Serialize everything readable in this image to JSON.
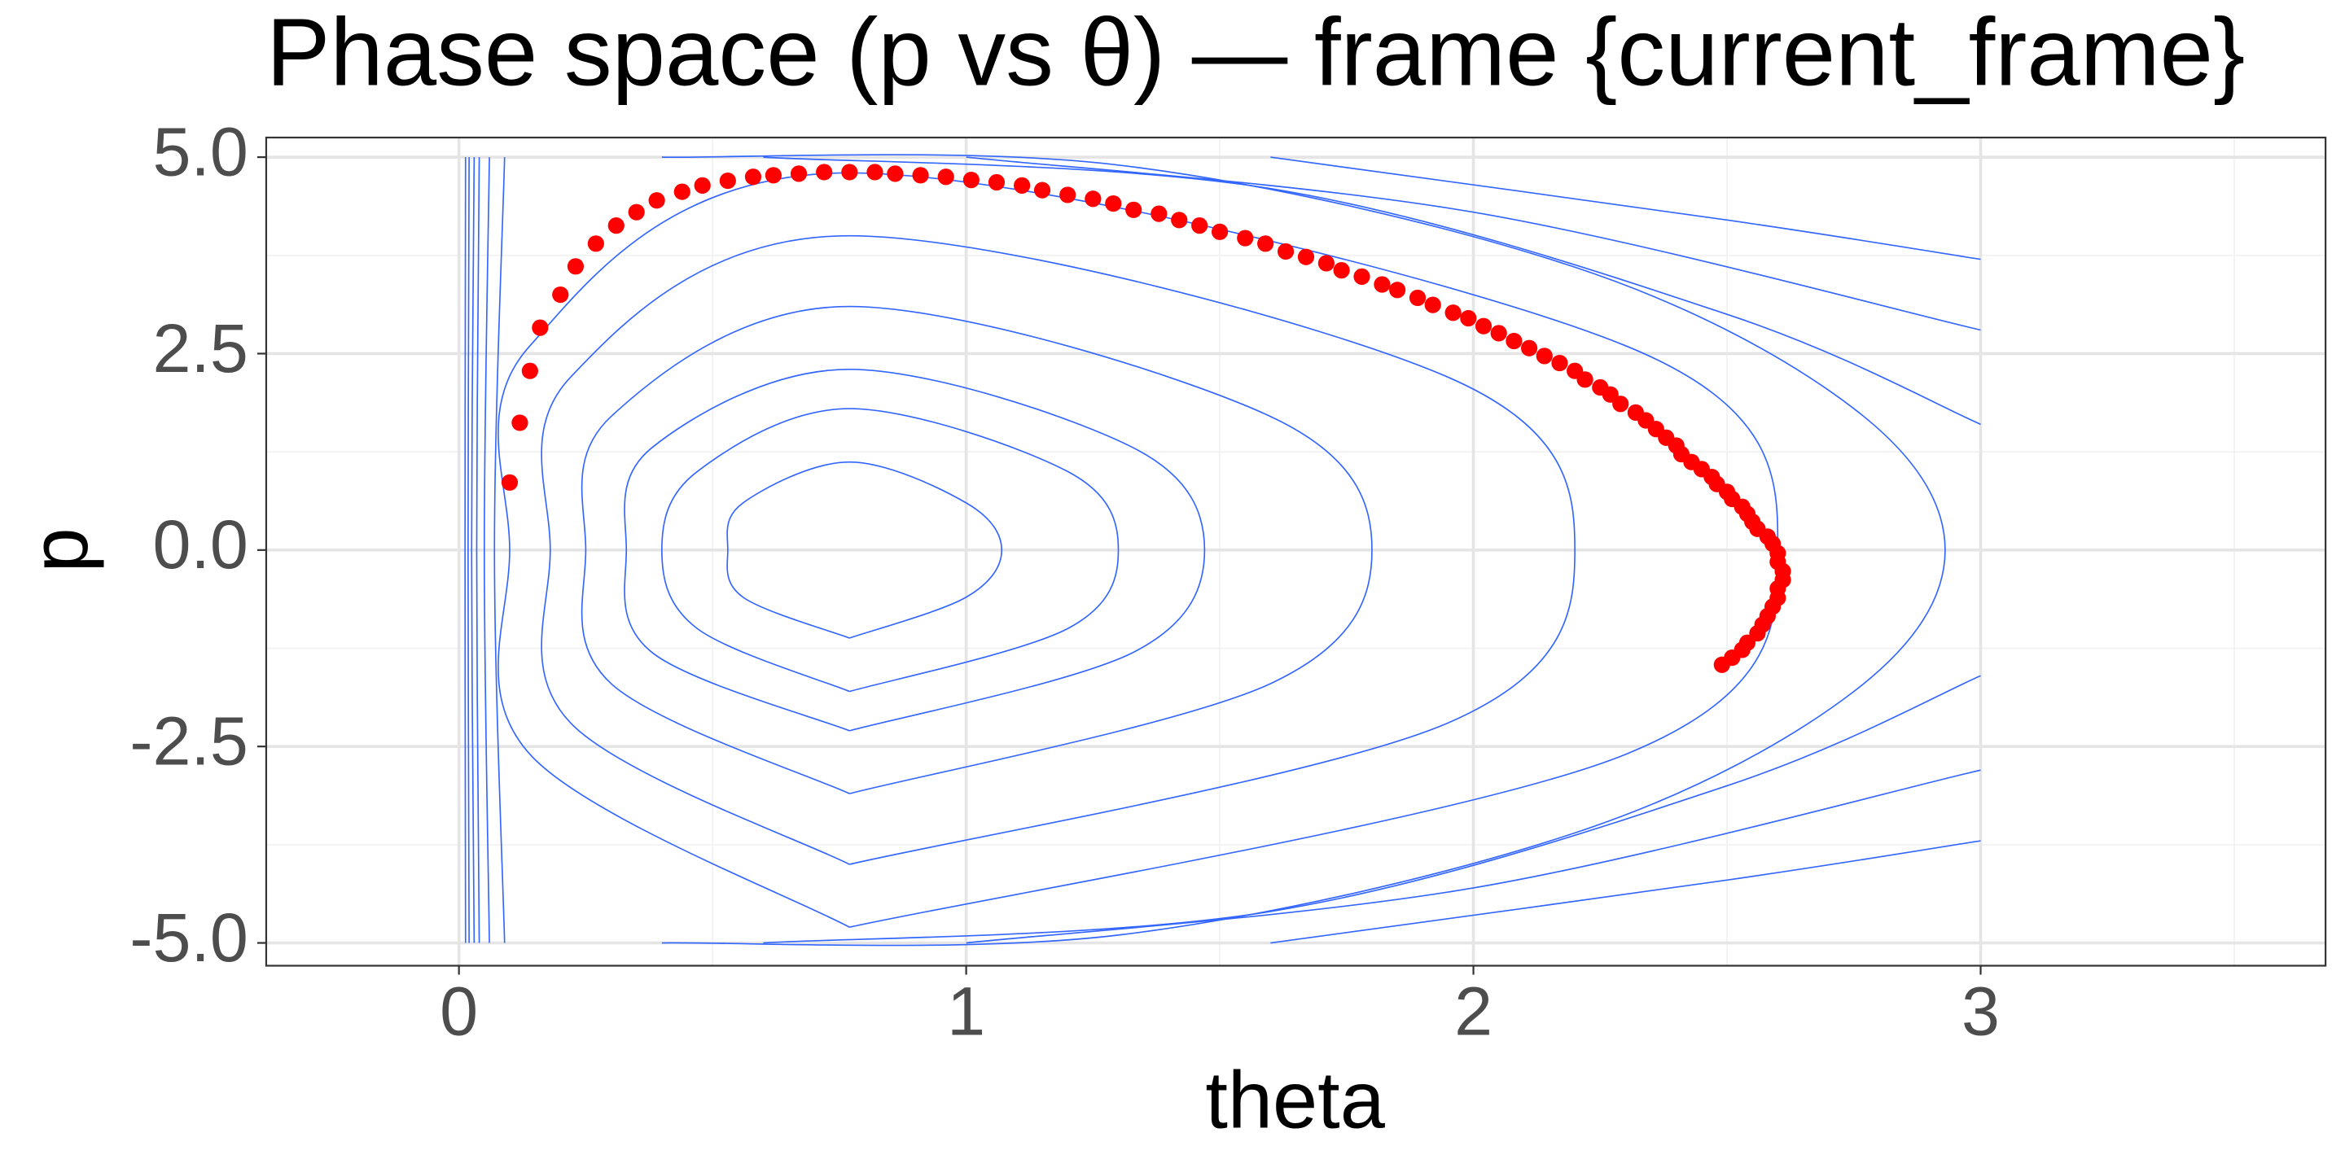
{
  "chart_data": {
    "type": "scatter",
    "title": "Phase space (p vs θ) — frame {current_frame}",
    "x_label": "theta",
    "y_label": "p",
    "xlim": [
      -0.38,
      3.68
    ],
    "ylim": [
      -5.29,
      5.25
    ],
    "xticks": [
      0,
      1,
      2,
      3
    ],
    "yticks": [
      {
        "value": 5,
        "label": "5.0"
      },
      {
        "value": 2.5,
        "label": "2.5"
      },
      {
        "value": 0,
        "label": "0.0"
      },
      {
        "value": -2.5,
        "label": "-2.5"
      },
      {
        "value": -5,
        "label": "-5.0"
      }
    ],
    "x_minor_grid": [
      0.5,
      1.5,
      2.5,
      3.5
    ],
    "y_minor_grid": [
      -3.75,
      -1.25,
      1.25,
      3.75
    ],
    "grid": true,
    "point_color": "#ff0000",
    "contour_color": "#3366ff",
    "points": {
      "x": [
        0.1,
        0.12,
        0.14,
        0.16,
        0.2,
        0.23,
        0.27,
        0.31,
        0.35,
        0.39,
        0.44,
        0.48,
        0.53,
        0.58,
        0.62,
        0.67,
        0.72,
        0.77,
        0.82,
        0.86,
        0.91,
        0.96,
        1.01,
        1.06,
        1.11,
        1.15,
        1.2,
        1.25,
        1.29,
        1.33,
        1.38,
        1.42,
        1.46,
        1.5,
        1.55,
        1.59,
        1.63,
        1.67,
        1.71,
        1.74,
        1.78,
        1.82,
        1.85,
        1.89,
        1.92,
        1.96,
        1.99,
        2.02,
        2.05,
        2.08,
        2.11,
        2.14,
        2.17,
        2.2,
        2.22,
        2.25,
        2.27,
        2.29,
        2.32,
        2.34,
        2.36,
        2.38,
        2.4,
        2.41,
        2.43,
        2.45,
        2.47,
        2.48,
        2.5,
        2.51,
        2.53,
        2.54,
        2.55,
        2.56,
        2.58,
        2.59,
        2.6,
        2.6,
        2.61,
        2.61,
        2.6,
        2.6,
        2.59,
        2.58,
        2.57,
        2.56,
        2.54,
        2.53,
        2.51,
        2.49
      ],
      "y": [
        0.86,
        1.62,
        2.28,
        2.83,
        3.25,
        3.61,
        3.9,
        4.13,
        4.3,
        4.45,
        4.56,
        4.64,
        4.7,
        4.75,
        4.77,
        4.79,
        4.81,
        4.81,
        4.81,
        4.79,
        4.77,
        4.75,
        4.71,
        4.68,
        4.64,
        4.58,
        4.52,
        4.47,
        4.41,
        4.33,
        4.28,
        4.2,
        4.13,
        4.05,
        3.97,
        3.9,
        3.8,
        3.73,
        3.65,
        3.56,
        3.48,
        3.38,
        3.31,
        3.21,
        3.12,
        3.02,
        2.95,
        2.85,
        2.76,
        2.66,
        2.57,
        2.47,
        2.38,
        2.28,
        2.17,
        2.07,
        1.98,
        1.86,
        1.75,
        1.65,
        1.54,
        1.43,
        1.33,
        1.22,
        1.12,
        1.03,
        0.93,
        0.84,
        0.74,
        0.65,
        0.55,
        0.46,
        0.36,
        0.27,
        0.17,
        0.08,
        -0.04,
        -0.15,
        -0.27,
        -0.38,
        -0.49,
        -0.61,
        -0.72,
        -0.84,
        -0.95,
        -1.06,
        -1.18,
        -1.27,
        -1.37,
        -1.46
      ]
    },
    "contours": [
      {
        "x": [
          0.77,
          1.0,
          1.07,
          1.0,
          0.77,
          0.56,
          0.53,
          0.56,
          0.77
        ],
        "y": [
          -1.12,
          -0.6,
          0,
          0.6,
          1.12,
          0.6,
          0,
          -0.6,
          -1.12
        ]
      },
      {
        "x": [
          0.77,
          1.2,
          1.3,
          1.2,
          0.77,
          0.47,
          0.4,
          0.47,
          0.77
        ],
        "y": [
          -1.8,
          -1,
          0,
          1,
          1.8,
          1,
          0,
          -1,
          -1.8
        ]
      },
      {
        "x": [
          0.77,
          1.33,
          1.47,
          1.33,
          0.77,
          0.38,
          0.33,
          0.38,
          0.77
        ],
        "y": [
          -2.3,
          -1.3,
          0,
          1.3,
          2.3,
          1.3,
          0,
          -1.3,
          -2.3
        ]
      },
      {
        "x": [
          0.77,
          1.6,
          1.8,
          1.6,
          0.77,
          0.3,
          0.25,
          0.3,
          0.77
        ],
        "y": [
          -3.1,
          -1.7,
          0,
          1.7,
          3.1,
          1.7,
          0,
          -1.7,
          -3.1
        ]
      },
      {
        "x": [
          0.77,
          1.95,
          2.2,
          1.95,
          0.77,
          0.22,
          0.18,
          0.22,
          0.77
        ],
        "y": [
          -4,
          -2.2,
          0,
          2.2,
          4,
          2.2,
          0,
          -2.2,
          -4
        ]
      },
      {
        "x": [
          0.77,
          2.3,
          2.6,
          2.3,
          0.77,
          0.14,
          0.1,
          0.14,
          0.77
        ],
        "y": [
          -4.8,
          -2.6,
          0,
          2.6,
          4.8,
          2.6,
          0,
          -2.6,
          -4.8
        ]
      },
      {
        "x": [
          0.4,
          1.3,
          2.2,
          2.75,
          2.93,
          2.75,
          2.2,
          1.3,
          0.4
        ],
        "y": [
          -5,
          -4.9,
          -3.6,
          -1.8,
          0,
          1.8,
          3.6,
          4.9,
          5
        ]
      },
      {
        "x": [
          0.6,
          1.6,
          2.5,
          3,
          null,
          3,
          2.5,
          1.6,
          0.6
        ],
        "y": [
          -5,
          -4.6,
          -3,
          -1.6,
          null,
          1.6,
          3,
          4.6,
          5
        ]
      },
      {
        "x": [
          1,
          2,
          3,
          null,
          3,
          2,
          1
        ],
        "y": [
          -5,
          -4.3,
          -2.8,
          null,
          2.8,
          4.3,
          5
        ]
      },
      {
        "x": [
          1.6,
          2.5,
          3,
          null,
          3,
          2.5,
          1.6
        ],
        "y": [
          -5,
          -4.2,
          -3.7,
          null,
          3.7,
          4.2,
          5
        ]
      },
      {
        "x": [
          0.09,
          0.07,
          0.09
        ],
        "y": [
          -5,
          0,
          5
        ]
      },
      {
        "x": [
          0.06,
          0.05,
          0.06
        ],
        "y": [
          -5,
          0,
          5
        ]
      },
      {
        "x": [
          0.04,
          0.035,
          0.04
        ],
        "y": [
          -5,
          0,
          5
        ]
      },
      {
        "x": [
          0.03,
          0.025,
          0.03
        ],
        "y": [
          -5,
          0,
          5
        ]
      },
      {
        "x": [
          0.02,
          0.018,
          0.02
        ],
        "y": [
          -5,
          0,
          5
        ]
      },
      {
        "x": [
          0.013,
          0.012,
          0.013
        ],
        "y": [
          -5,
          0,
          5
        ]
      }
    ]
  }
}
